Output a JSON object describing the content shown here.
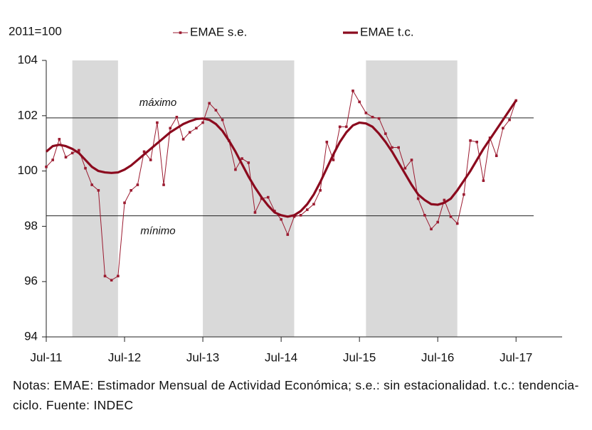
{
  "chart_data": {
    "type": "line",
    "unit_label": "2011=100",
    "categories": [
      "Jul-11",
      null,
      null,
      null,
      null,
      null,
      null,
      null,
      null,
      null,
      null,
      null,
      "Jul-12",
      null,
      null,
      null,
      null,
      null,
      null,
      null,
      null,
      null,
      null,
      null,
      "Jul-13",
      null,
      null,
      null,
      null,
      null,
      null,
      null,
      null,
      null,
      null,
      null,
      "Jul-14",
      null,
      null,
      null,
      null,
      null,
      null,
      null,
      null,
      null,
      null,
      null,
      "Jul-15",
      null,
      null,
      null,
      null,
      null,
      null,
      null,
      null,
      null,
      null,
      null,
      "Jul-16",
      null,
      null,
      null,
      null,
      null,
      null,
      null,
      null,
      null,
      null,
      null,
      "Jul-17"
    ],
    "series": [
      {
        "name": "EMAE s.e.",
        "color": "#9b1b30",
        "markers": true,
        "values": [
          100.15,
          100.4,
          101.15,
          100.5,
          100.65,
          100.75,
          100.1,
          99.5,
          99.3,
          96.2,
          96.05,
          96.2,
          98.85,
          99.3,
          99.5,
          100.7,
          100.4,
          101.75,
          99.5,
          101.55,
          101.95,
          101.15,
          101.4,
          101.55,
          101.75,
          102.45,
          102.2,
          101.85,
          101.1,
          100.05,
          100.45,
          100.3,
          98.5,
          99.0,
          99.05,
          98.55,
          98.25,
          97.7,
          98.35,
          98.4,
          98.6,
          98.8,
          99.3,
          101.05,
          100.4,
          101.6,
          101.6,
          102.9,
          102.5,
          102.1,
          101.95,
          101.9,
          101.35,
          100.85,
          100.85,
          100.1,
          100.4,
          99.0,
          98.4,
          97.9,
          98.15,
          98.95,
          98.35,
          98.1,
          99.15,
          101.1,
          101.05,
          99.65,
          101.2,
          100.55,
          101.55,
          101.85,
          102.55
        ]
      },
      {
        "name": "EMAE t.c.",
        "color": "#8b0a1e",
        "markers": false,
        "values": [
          100.7,
          100.9,
          100.95,
          100.9,
          100.8,
          100.65,
          100.4,
          100.15,
          100.0,
          99.95,
          99.93,
          99.95,
          100.05,
          100.2,
          100.4,
          100.6,
          100.8,
          101.0,
          101.2,
          101.4,
          101.55,
          101.7,
          101.8,
          101.88,
          101.9,
          101.85,
          101.7,
          101.45,
          101.1,
          100.7,
          100.25,
          99.8,
          99.4,
          99.05,
          98.75,
          98.5,
          98.4,
          98.35,
          98.4,
          98.55,
          98.8,
          99.15,
          99.6,
          100.1,
          100.6,
          101.05,
          101.4,
          101.65,
          101.75,
          101.72,
          101.6,
          101.35,
          101.05,
          100.7,
          100.3,
          99.9,
          99.5,
          99.15,
          98.95,
          98.8,
          98.78,
          98.85,
          99.0,
          99.3,
          99.65,
          100.0,
          100.4,
          100.8,
          101.15,
          101.5,
          101.85,
          102.2,
          102.55
        ]
      }
    ],
    "shaded_periods": [
      [
        4,
        11
      ],
      [
        24,
        38
      ],
      [
        49,
        63
      ]
    ],
    "reference_lines": [
      {
        "value": 101.92,
        "label": "máximo"
      },
      {
        "value": 98.38,
        "label": "mínimo"
      }
    ],
    "ylim": [
      94,
      104
    ],
    "yticks": [
      94,
      96,
      98,
      100,
      102,
      104
    ],
    "note": "Notas: EMAE: Estimador Mensual de Actividad Económica; s.e.: sin estacionalidad. t.c.: tendencia-ciclo. Fuente: INDEC"
  }
}
